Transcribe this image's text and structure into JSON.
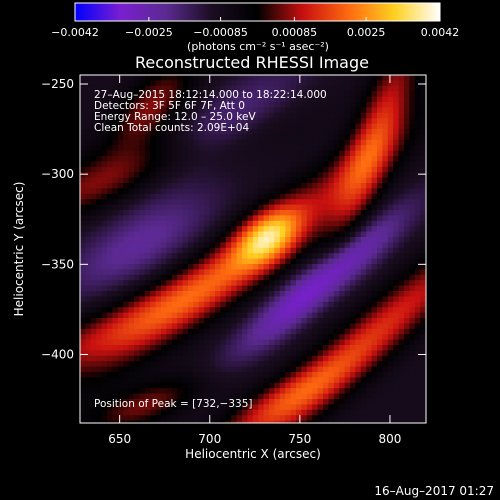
{
  "chart_data": {
    "type": "heatmap",
    "title": "Reconstructed RHESSI Image",
    "xlabel": "Heliocentric X (arcsec)",
    "ylabel": "Heliocentric Y (arcsec)",
    "xlim": [
      628,
      820
    ],
    "ylim": [
      -438,
      -245
    ],
    "x_ticks": [
      650,
      700,
      750,
      800
    ],
    "y_ticks": [
      -250,
      -300,
      -350,
      -400
    ],
    "x_tick_labels": [
      "650",
      "700",
      "750",
      "800"
    ],
    "y_tick_labels": [
      "−250",
      "−300",
      "−350",
      "−400"
    ],
    "colorbar": {
      "min": -0.0042,
      "max": 0.0042,
      "ticks": [
        -0.0042,
        -0.0025,
        -0.00085,
        0.00085,
        0.0025,
        0.0042
      ],
      "tick_labels": [
        "−0.0042",
        "−0.0025",
        "−0.00085",
        "0.00085",
        "0.0025",
        "0.0042"
      ],
      "unit_label": "(photons cm⁻² s⁻¹ asec⁻²)",
      "colors": [
        "#0000ff",
        "#7a1fd0",
        "#5a2a90",
        "#1a0d20",
        "#000000",
        "#c81010",
        "#ff6a10",
        "#ffd020",
        "#ffffff"
      ]
    },
    "info_lines": [
      "27–Aug–2015 18:12:14.000 to 18:22:14.000",
      "Detectors: 3F 5F 6F 7F, Att 0",
      "Energy Range: 12.0 – 25.0 keV",
      "Clean     Total counts: 2.09E+04"
    ],
    "peak_label": "Position of Peak = [732,−335]",
    "peak_position": [
      732,
      -335
    ],
    "peak_value": 0.0042,
    "features": [
      {
        "name": "main_ridge",
        "x": 720,
        "y": -345,
        "amp": 0.002,
        "sigma_major": 75,
        "sigma_minor": 11,
        "angle_deg": 38
      },
      {
        "name": "peak_core",
        "x": 732,
        "y": -335,
        "amp": 0.0026,
        "sigma_major": 14,
        "sigma_minor": 9,
        "angle_deg": 38
      },
      {
        "name": "top_right_lobe",
        "x": 792,
        "y": -280,
        "amp": 0.0021,
        "sigma_major": 45,
        "sigma_minor": 9,
        "angle_deg": 70
      },
      {
        "name": "top_left_patch",
        "x": 668,
        "y": -262,
        "amp": 0.0016,
        "sigma_major": 22,
        "sigma_minor": 10,
        "angle_deg": 45
      },
      {
        "name": "left_band",
        "x": 655,
        "y": -300,
        "amp": 0.0018,
        "sigma_major": 55,
        "sigma_minor": 11,
        "angle_deg": 20
      },
      {
        "name": "lower_left_band",
        "x": 650,
        "y": -385,
        "amp": 0.0017,
        "sigma_major": 55,
        "sigma_minor": 10,
        "angle_deg": 25
      },
      {
        "name": "bottom_left_patch",
        "x": 665,
        "y": -428,
        "amp": 0.0015,
        "sigma_major": 25,
        "sigma_minor": 8,
        "angle_deg": 20
      },
      {
        "name": "lower_right_ridge",
        "x": 785,
        "y": -395,
        "amp": 0.0023,
        "sigma_major": 70,
        "sigma_minor": 10,
        "angle_deg": 42
      },
      {
        "name": "bottom_center_patch",
        "x": 735,
        "y": -428,
        "amp": 0.0014,
        "sigma_major": 30,
        "sigma_minor": 8,
        "angle_deg": 30
      },
      {
        "name": "blue_trough",
        "x": 762,
        "y": -360,
        "amp": -0.0024,
        "sigma_major": 42,
        "sigma_minor": 8,
        "angle_deg": 40
      },
      {
        "name": "purple_trough_upper",
        "x": 700,
        "y": -280,
        "amp": -0.0016,
        "sigma_major": 40,
        "sigma_minor": 12,
        "angle_deg": 35
      },
      {
        "name": "purple_trough_left",
        "x": 660,
        "y": -340,
        "amp": -0.0013,
        "sigma_major": 35,
        "sigma_minor": 12,
        "angle_deg": 30
      }
    ],
    "background_value": -0.0009,
    "grid": false
  },
  "footer": {
    "date": "16–Aug–2017 01:27"
  }
}
